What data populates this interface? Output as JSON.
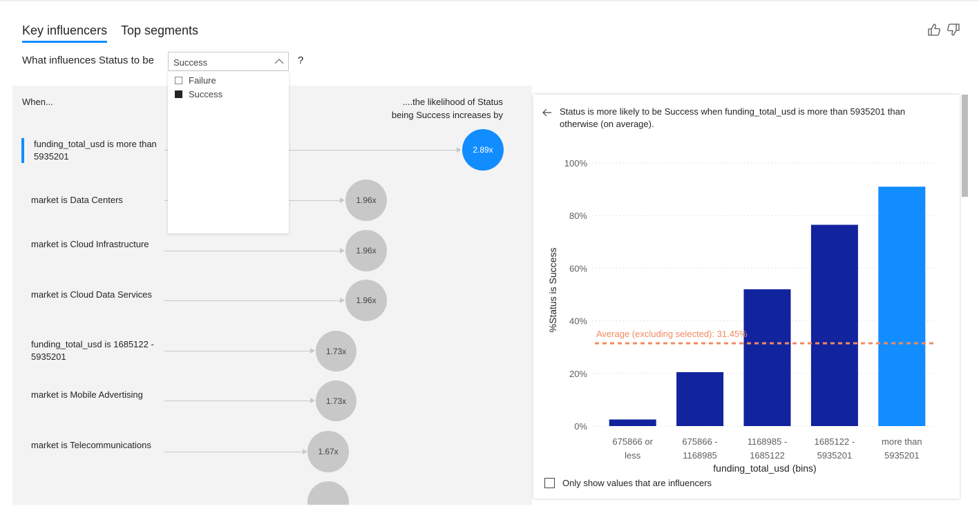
{
  "tabs": [
    {
      "label": "Key influencers",
      "active": true
    },
    {
      "label": "Top segments",
      "active": false
    }
  ],
  "feedback": {
    "like_icon": "thumbs-up-icon",
    "dislike_icon": "thumbs-down-icon"
  },
  "question": {
    "prefix": "What influences Status to be",
    "suffix": "?",
    "selected": "Success",
    "options": [
      {
        "label": "Failure",
        "checked": false
      },
      {
        "label": "Success",
        "checked": true
      }
    ]
  },
  "influencers": {
    "when_label": "When...",
    "likelihood_label": "....the likelihood of Status being Success increases by",
    "rows": [
      {
        "label": "funding_total_usd is more than 5935201",
        "value": "2.89x",
        "selected": true
      },
      {
        "label": "market is Data Centers",
        "value": "1.96x",
        "selected": false
      },
      {
        "label": "market is Cloud Infrastructure",
        "value": "1.96x",
        "selected": false
      },
      {
        "label": "market is Cloud Data Services",
        "value": "1.96x",
        "selected": false
      },
      {
        "label": "funding_total_usd is 1685122 - 5935201",
        "value": "1.73x",
        "selected": false
      },
      {
        "label": "market is Mobile Advertising",
        "value": "1.73x",
        "selected": false
      },
      {
        "label": "market is Telecommunications",
        "value": "1.67x",
        "selected": false
      }
    ]
  },
  "detail": {
    "title": "Status is more likely to be Success when funding_total_usd is more than 5935201 than otherwise (on average).",
    "only_influencers_label": "Only show values that are influencers",
    "only_influencers_checked": false
  },
  "chart_data": {
    "type": "bar",
    "categories": [
      "675866 or less",
      "675866 - 1168985",
      "1168985 - 1685122",
      "1685122 - 5935201",
      "more than 5935201"
    ],
    "category_lines": [
      [
        "675866 or",
        "less"
      ],
      [
        "675866 -",
        "1168985"
      ],
      [
        "1168985 -",
        "1685122"
      ],
      [
        "1685122 -",
        "5935201"
      ],
      [
        "more than",
        "5935201"
      ]
    ],
    "values": [
      2.5,
      20.5,
      52,
      76.5,
      91
    ],
    "highlighted_index": 4,
    "ylim": [
      0,
      100
    ],
    "yticks": [
      "0%",
      "20%",
      "40%",
      "60%",
      "80%",
      "100%"
    ],
    "ytick_values": [
      0,
      20,
      40,
      60,
      80,
      100
    ],
    "ylabel": "%Status is Success",
    "xlabel": "funding_total_usd (bins)",
    "average_label": "Average (excluding selected): 31.45%",
    "average_value": 31.45,
    "colors": {
      "bar": "#12239e",
      "highlight": "#118dff",
      "average": "#f08a60",
      "grid": "#d0d0d0"
    }
  }
}
